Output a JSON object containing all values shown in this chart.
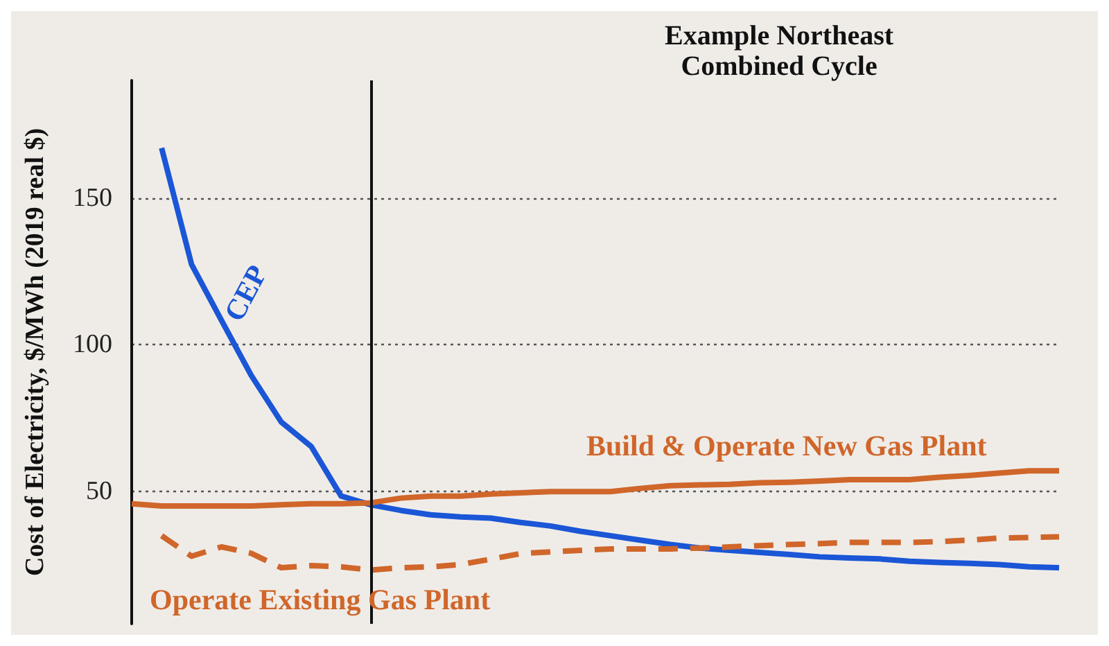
{
  "chart_data": {
    "type": "line",
    "title": "Example Northeast\nCombined Cycle",
    "ylabel": "Cost of Electricity, $/MWh (2019 real $)",
    "categories": [
      null,
      null,
      null,
      null,
      null,
      null,
      null,
      null,
      null,
      null,
      null,
      null,
      null,
      null,
      null,
      null,
      null,
      null,
      null,
      null,
      null,
      null,
      null,
      null,
      null,
      null,
      null,
      null,
      null,
      null,
      null,
      null
    ],
    "ylim": [
      5,
      190
    ],
    "yticks": [
      50,
      100,
      150
    ],
    "tick_labels": "y",
    "grid": "y",
    "legend": false,
    "series": [
      {
        "name": "CEP",
        "color": "#1a56d6",
        "line_style": "solid",
        "values": [
          null,
          167,
          127.4,
          108.3,
          89.5,
          73.7,
          65.4,
          48.5,
          45.5,
          43.6,
          42.1,
          41.4,
          41,
          39.5,
          38.3,
          36.5,
          35,
          33.5,
          32,
          30.8,
          30,
          29.3,
          28.6,
          27.8,
          27.4,
          27.1,
          26.3,
          25.9,
          25.6,
          25.2,
          24.4,
          24.1
        ]
      },
      {
        "name": "Build & Operate New Gas Plant",
        "color": "#d0662a",
        "line_style": "solid",
        "values": [
          45.9,
          45.1,
          45.1,
          45.1,
          45.1,
          45.5,
          45.9,
          45.9,
          46.2,
          47.8,
          48.5,
          48.5,
          49.2,
          49.6,
          50,
          50,
          50,
          51.1,
          52,
          52.3,
          52.5,
          53,
          53.2,
          53.6,
          54.1,
          54.1,
          54.1,
          54.9,
          55.5,
          56.3,
          57.1,
          57.1
        ]
      },
      {
        "name": "Operate Existing Gas Plant",
        "color": "#d0662a",
        "line_style": "dashed",
        "values": [
          null,
          35,
          28,
          31.2,
          29,
          24.1,
          24.8,
          24.4,
          23.3,
          24.1,
          24.4,
          25.2,
          27,
          28.9,
          29.5,
          30,
          30.5,
          30.5,
          30.5,
          30.8,
          31.2,
          31.6,
          32,
          32.3,
          32.7,
          32.7,
          32.7,
          33,
          33.5,
          34.2,
          34.4,
          34.6
        ]
      }
    ]
  }
}
